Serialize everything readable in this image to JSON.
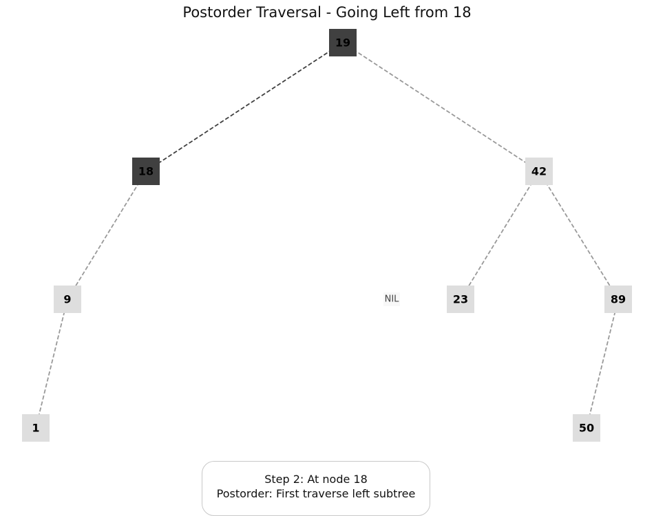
{
  "title": "Postorder Traversal - Going Left from 18",
  "colors": {
    "active_fill": "#404040",
    "inactive_fill": "#dedede",
    "active_edge": "#404040",
    "inactive_edge": "#999999",
    "nil_text": "#444444",
    "nil_fill": "#f8f8f8"
  },
  "tree": {
    "nodes": [
      {
        "id": "n19",
        "label": "19",
        "state": "active"
      },
      {
        "id": "n18",
        "label": "18",
        "state": "active"
      },
      {
        "id": "n42",
        "label": "42",
        "state": "inactive"
      },
      {
        "id": "n9",
        "label": "9",
        "state": "inactive"
      },
      {
        "id": "nil",
        "label": "NIL",
        "state": "nil"
      },
      {
        "id": "n23",
        "label": "23",
        "state": "inactive"
      },
      {
        "id": "n89",
        "label": "89",
        "state": "inactive"
      },
      {
        "id": "n1",
        "label": "1",
        "state": "inactive"
      },
      {
        "id": "n50",
        "label": "50",
        "state": "inactive"
      }
    ],
    "edges": [
      {
        "from": "n19",
        "to": "n18",
        "state": "active"
      },
      {
        "from": "n19",
        "to": "n42",
        "state": "inactive"
      },
      {
        "from": "n18",
        "to": "n9",
        "state": "inactive"
      },
      {
        "from": "n42",
        "to": "n23",
        "state": "inactive"
      },
      {
        "from": "n42",
        "to": "n89",
        "state": "inactive"
      },
      {
        "from": "n9",
        "to": "n1",
        "state": "inactive"
      },
      {
        "from": "n89",
        "to": "n50",
        "state": "inactive"
      }
    ]
  },
  "caption": {
    "line1": "Step 2: At node 18",
    "line2": "Postorder: First traverse left subtree"
  }
}
